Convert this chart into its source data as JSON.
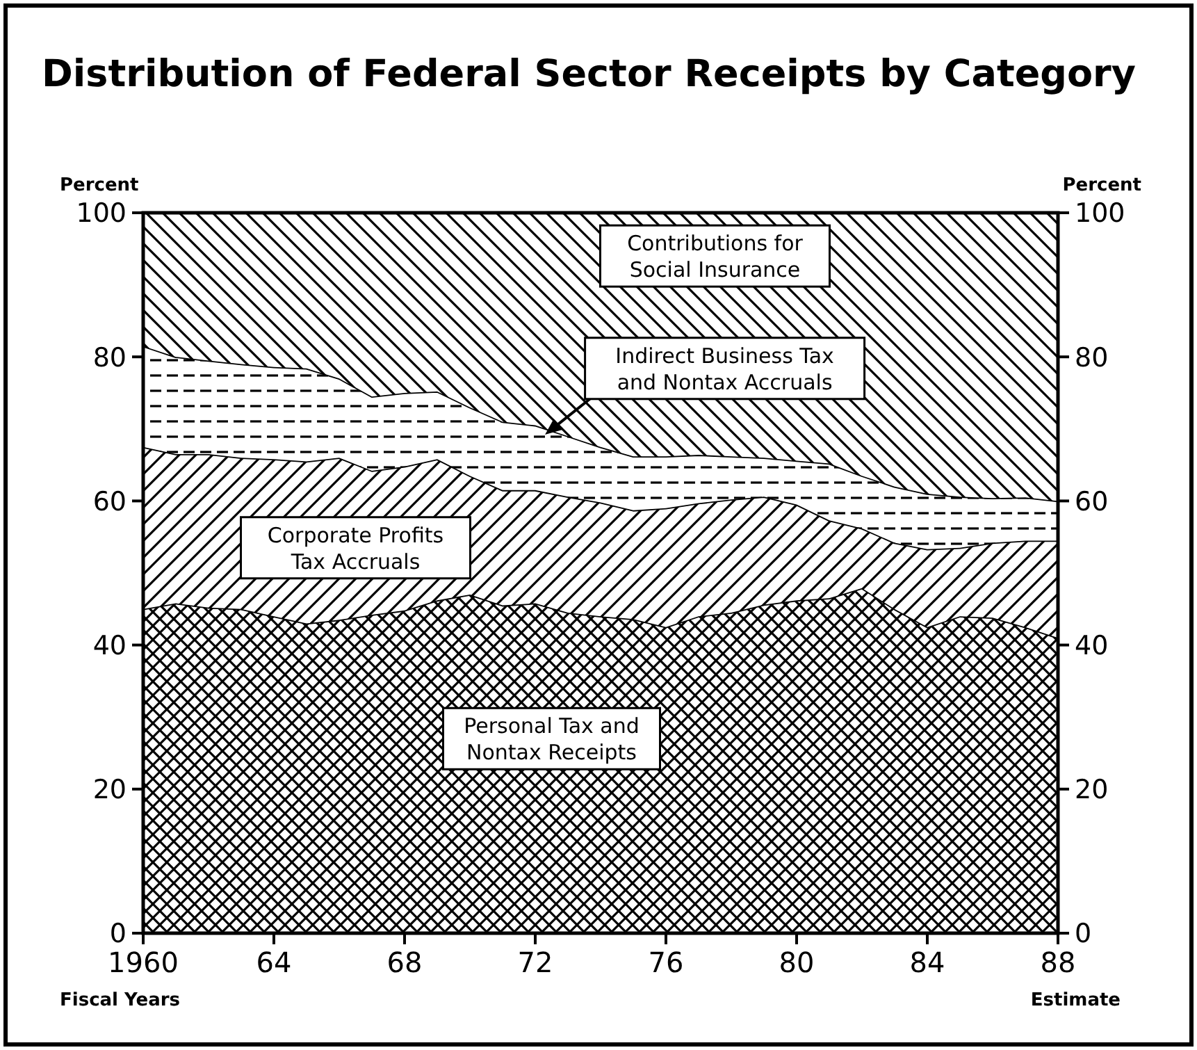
{
  "chart_data": {
    "type": "area",
    "stacked": true,
    "title": "Distribution of Federal Sector Receipts by Category",
    "xlabel": "Fiscal Years",
    "ylabel": "Percent",
    "y2label": "Percent",
    "annotations": [
      "Estimate"
    ],
    "x": [
      1960,
      1961,
      1962,
      1963,
      1964,
      1965,
      1966,
      1967,
      1968,
      1969,
      1970,
      1971,
      1972,
      1973,
      1974,
      1975,
      1976,
      1977,
      1978,
      1979,
      1980,
      1981,
      1982,
      1983,
      1984,
      1985,
      1986,
      1987,
      1988
    ],
    "series": [
      {
        "name": "Personal Tax and Nontax Receipts",
        "color": "#000000",
        "values": [
          45,
          45.8,
          45.2,
          45,
          44,
          43,
          43.5,
          44.2,
          44.8,
          46.2,
          47,
          45.5,
          45.8,
          44.5,
          44,
          43.6,
          42.5,
          44,
          44.5,
          45.6,
          46.2,
          46.5,
          47.9,
          45,
          42.5,
          44,
          43.8,
          42.5,
          41
        ]
      },
      {
        "name": "Corporate Profits Tax Accruals",
        "color": "#000000",
        "values": [
          22.5,
          20.7,
          21.3,
          21,
          21.8,
          22.5,
          22.5,
          20,
          20,
          19.6,
          16.5,
          16,
          15.7,
          16.1,
          15.8,
          15.1,
          16.5,
          15.7,
          15.7,
          15,
          13.3,
          10.8,
          8.3,
          9.2,
          10.8,
          9.5,
          10.4,
          12,
          13.5
        ]
      },
      {
        "name": "Indirect Business Tax and Nontax Accruals",
        "color": "#000000",
        "values": [
          14,
          13.5,
          13,
          13,
          12.8,
          12.9,
          11,
          10.3,
          10.2,
          9.4,
          9.5,
          9.5,
          9,
          8.4,
          7.7,
          7.5,
          7.2,
          6.7,
          6,
          5.4,
          6.1,
          7.9,
          7.3,
          7.8,
          7.7,
          7.1,
          6.2,
          6,
          5.5
        ]
      },
      {
        "name": "Contributions for Social Insurance",
        "color": "#000000",
        "values": [
          18.5,
          20,
          20.5,
          21,
          21.4,
          21.6,
          23,
          25.5,
          25,
          24.8,
          27,
          29,
          29.5,
          31,
          32.5,
          33.8,
          33.8,
          33.6,
          33.8,
          34,
          34.4,
          34.8,
          36.5,
          38,
          39,
          39.4,
          39.6,
          39.5,
          40
        ]
      }
    ],
    "xlim": [
      1960,
      1988
    ],
    "xticks": [
      {
        "value": 1960,
        "label": "1960"
      },
      {
        "value": 1964,
        "label": "64"
      },
      {
        "value": 1968,
        "label": "68"
      },
      {
        "value": 1972,
        "label": "72"
      },
      {
        "value": 1976,
        "label": "76"
      },
      {
        "value": 1980,
        "label": "80"
      },
      {
        "value": 1984,
        "label": "84"
      },
      {
        "value": 1988,
        "label": "88"
      }
    ],
    "ylim": [
      0,
      100
    ],
    "yticks": [
      0,
      20,
      40,
      60,
      80,
      100
    ],
    "y2lim": [
      0,
      100
    ],
    "y2ticks": [
      0,
      20,
      40,
      60,
      80,
      100
    ],
    "grid": false,
    "legend": false
  }
}
